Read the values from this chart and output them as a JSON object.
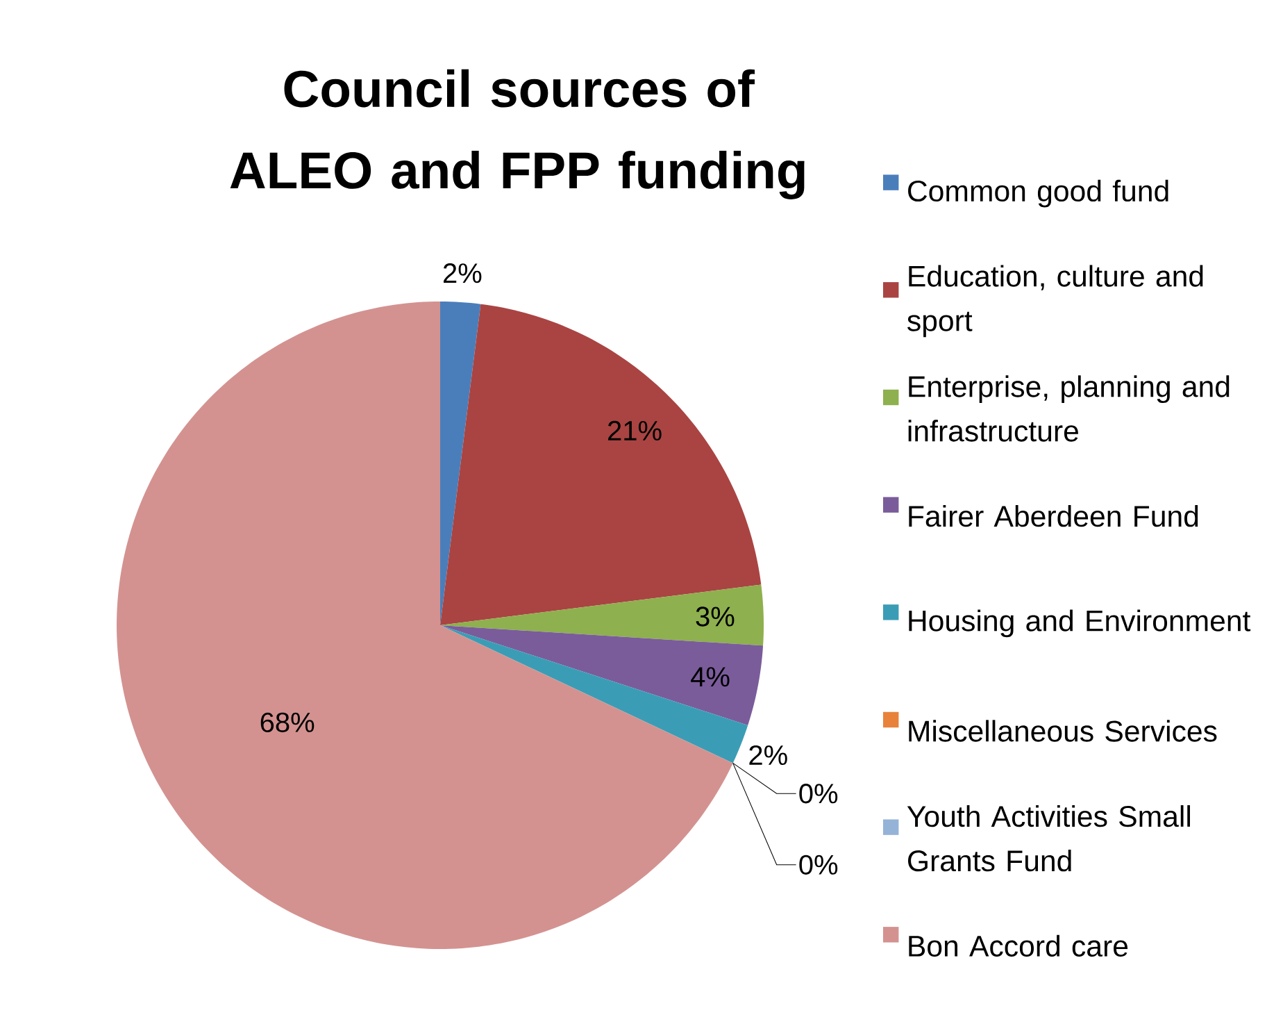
{
  "chart_data": {
    "type": "pie",
    "title": "Council sources of ALEO and FPP funding",
    "categories": [
      "Common good fund",
      "Education, culture and sport",
      "Enterprise, planning and infrastructure",
      "Fairer Aberdeen Fund",
      "Housing and Environment",
      "Miscellaneous Services",
      "Youth Activities Small Grants Fund",
      "Bon Accord care"
    ],
    "values": [
      2,
      21,
      3,
      4,
      2,
      0,
      0,
      68
    ],
    "value_labels": [
      "2%",
      "21%",
      "3%",
      "4%",
      "2%",
      "0%",
      "0%",
      "68%"
    ],
    "colors": [
      "#4a7ebb",
      "#a94442",
      "#8eb04e",
      "#7a5c9b",
      "#3b9db5",
      "#e8823a",
      "#95b3d7",
      "#d39290"
    ],
    "legend": "right"
  }
}
